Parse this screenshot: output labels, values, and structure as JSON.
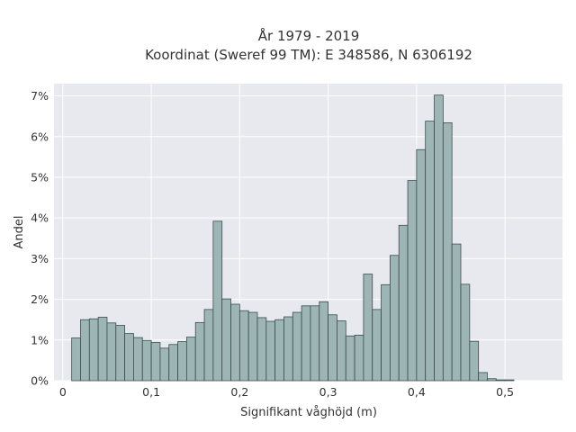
{
  "chart_data": {
    "type": "bar",
    "title": "År 1979 - 2019",
    "subtitle": "Koordinat (Sweref 99 TM): E 348586, N 6306192",
    "xlabel": "Signifikant våghöjd (m)",
    "ylabel": "Andel",
    "xlim": [
      -0.01,
      0.565
    ],
    "ylim": [
      0,
      7.3
    ],
    "x_ticks": [
      0,
      0.1,
      0.2,
      0.3,
      0.4,
      0.5
    ],
    "x_tick_labels": [
      "0",
      "0,1",
      "0,2",
      "0,3",
      "0,4",
      "0,5"
    ],
    "y_ticks": [
      0,
      1,
      2,
      3,
      4,
      5,
      6,
      7
    ],
    "y_tick_labels": [
      "0%",
      "1%",
      "2%",
      "3%",
      "4%",
      "5%",
      "6%",
      "7%"
    ],
    "bin_start": 0.01,
    "bin_width": 0.01,
    "values": [
      1.05,
      1.5,
      1.52,
      1.56,
      1.42,
      1.36,
      1.16,
      1.06,
      0.99,
      0.94,
      0.8,
      0.89,
      0.96,
      1.07,
      1.43,
      1.75,
      3.92,
      2.01,
      1.88,
      1.72,
      1.68,
      1.55,
      1.46,
      1.5,
      1.57,
      1.68,
      1.84,
      1.84,
      1.94,
      1.62,
      1.47,
      1.1,
      1.12,
      2.62,
      1.75,
      2.36,
      3.08,
      3.82,
      4.92,
      5.68,
      6.38,
      7.02,
      6.34,
      3.36,
      2.37,
      0.97,
      0.2,
      0.05,
      0.02,
      0.02
    ],
    "colors": {
      "bar_fill": "#9db5b5",
      "bar_stroke": "#3d4d4d",
      "plot_background": "#e8e8ef",
      "grid": "#ffffff"
    },
    "grid": true,
    "legend": "none"
  }
}
